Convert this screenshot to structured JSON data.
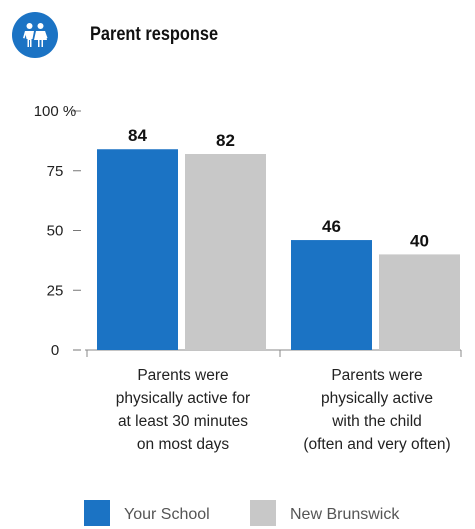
{
  "header": {
    "title": "Parent response",
    "icon": "children-icon",
    "icon_color": "#1b73c4"
  },
  "chart_data": {
    "type": "bar",
    "title": "Parent response",
    "ylim": [
      0,
      100
    ],
    "yticks": [
      "0",
      "25",
      "50",
      "75",
      "100 %"
    ],
    "ytick_values": [
      0,
      25,
      50,
      75,
      100
    ],
    "categories": [
      [
        "Parents were",
        "physically active for",
        "at least 30 minutes",
        "on most days"
      ],
      [
        "Parents were",
        "physically active",
        "with the child",
        "(often and very often)"
      ]
    ],
    "series": [
      {
        "name": "Your School",
        "values": [
          84,
          46
        ],
        "color": "#1b73c4"
      },
      {
        "name": "New Brunswick",
        "values": [
          82,
          40
        ],
        "color": "#c8c8c8"
      }
    ],
    "grid": false,
    "legend_position": "bottom"
  }
}
